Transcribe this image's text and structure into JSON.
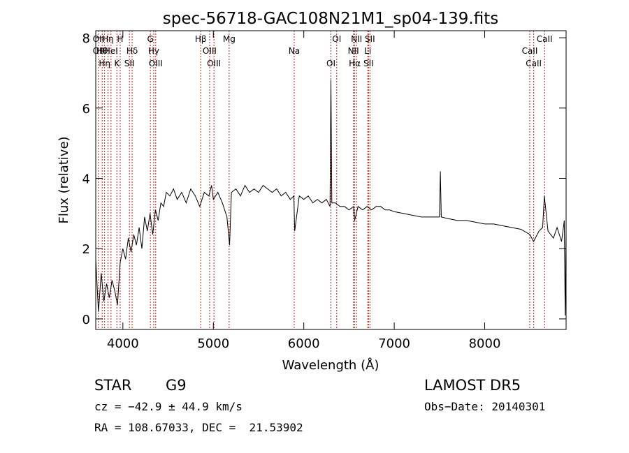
{
  "chart_data": {
    "type": "line",
    "title": "spec-56718-GAC108N21M1_sp04-139.fits",
    "xlabel": "Wavelength (Å)",
    "ylabel": "Flux (relative)",
    "xlim": [
      3700,
      8900
    ],
    "ylim": [
      -0.3,
      8.2
    ],
    "x_ticks": [
      4000,
      5000,
      6000,
      7000,
      8000
    ],
    "y_ticks": [
      0,
      2,
      4,
      6,
      8
    ],
    "grid": false,
    "series": [
      {
        "x": [
          3700,
          3730,
          3760,
          3790,
          3820,
          3850,
          3880,
          3910,
          3940,
          3970,
          4000,
          4030,
          4060,
          4090,
          4120,
          4150,
          4180,
          4210,
          4240,
          4270,
          4300,
          4330,
          4360,
          4390,
          4420,
          4450,
          4480,
          4520,
          4560,
          4600,
          4650,
          4700,
          4750,
          4800,
          4850,
          4900,
          4950,
          4980,
          5000,
          5050,
          5100,
          5150,
          5180,
          5200,
          5250,
          5300,
          5350,
          5400,
          5450,
          5500,
          5550,
          5600,
          5650,
          5700,
          5750,
          5800,
          5850,
          5890,
          5900,
          5950,
          6000,
          6050,
          6100,
          6150,
          6200,
          6250,
          6290,
          6300,
          6310,
          6350,
          6400,
          6450,
          6500,
          6550,
          6563,
          6600,
          6650,
          6700,
          6750,
          6800,
          6850,
          6900,
          6950,
          7000,
          7100,
          7200,
          7300,
          7400,
          7500,
          7510,
          7520,
          7600,
          7700,
          7800,
          7900,
          8000,
          8100,
          8200,
          8300,
          8400,
          8500,
          8540,
          8600,
          8640,
          8660,
          8700,
          8760,
          8800,
          8850,
          8880,
          8890,
          8900
        ],
        "y": [
          1.7,
          0.2,
          1.3,
          0.5,
          1.0,
          0.6,
          1.1,
          0.8,
          0.4,
          1.6,
          2.0,
          1.7,
          2.3,
          1.9,
          2.4,
          2.1,
          2.6,
          2.0,
          2.9,
          2.5,
          3.0,
          2.4,
          3.1,
          2.8,
          3.3,
          3.2,
          3.6,
          3.5,
          3.7,
          3.4,
          3.6,
          3.3,
          3.7,
          3.5,
          3.2,
          3.6,
          3.5,
          3.8,
          3.4,
          3.6,
          3.3,
          2.9,
          2.1,
          3.6,
          3.7,
          3.5,
          3.8,
          3.6,
          3.7,
          3.6,
          3.8,
          3.7,
          3.6,
          3.7,
          3.5,
          3.6,
          3.4,
          3.5,
          2.5,
          3.5,
          3.4,
          3.5,
          3.3,
          3.4,
          3.3,
          3.4,
          3.2,
          6.8,
          3.3,
          3.3,
          3.2,
          3.2,
          3.1,
          3.2,
          2.8,
          3.2,
          3.1,
          3.2,
          3.1,
          3.2,
          3.2,
          3.1,
          3.1,
          3.05,
          3.0,
          2.95,
          2.9,
          2.9,
          2.9,
          4.2,
          2.9,
          2.85,
          2.8,
          2.8,
          2.75,
          2.7,
          2.7,
          2.65,
          2.6,
          2.55,
          2.4,
          2.2,
          2.5,
          2.6,
          3.5,
          2.5,
          2.3,
          2.6,
          2.2,
          2.8,
          0.1,
          2.5
        ]
      }
    ],
    "lines": [
      {
        "x": 3730,
        "labels": [
          "OII",
          "OII"
        ]
      },
      {
        "x": 3771,
        "labels": [
          "Hθ"
        ]
      },
      {
        "x": 3798,
        "labels": [
          "Hη"
        ]
      },
      {
        "x": 3835,
        "labels": [
          "Hη"
        ]
      },
      {
        "x": 3869,
        "labels": [
          "HeI"
        ]
      },
      {
        "x": 3934,
        "labels": [
          "K"
        ]
      },
      {
        "x": 3970,
        "labels": [
          "H"
        ]
      },
      {
        "x": 4102,
        "labels": [
          "Hδ"
        ]
      },
      {
        "x": 4072,
        "labels": [
          "SII"
        ]
      },
      {
        "x": 4304,
        "labels": [
          "G"
        ]
      },
      {
        "x": 4341,
        "labels": [
          "Hγ"
        ]
      },
      {
        "x": 4363,
        "labels": [
          "OIII"
        ]
      },
      {
        "x": 4861,
        "labels": [
          "Hβ"
        ]
      },
      {
        "x": 4959,
        "labels": [
          "OIII"
        ]
      },
      {
        "x": 5007,
        "labels": [
          "OIII"
        ]
      },
      {
        "x": 5175,
        "labels": [
          "Mg"
        ]
      },
      {
        "x": 5894,
        "labels": [
          "Na"
        ]
      },
      {
        "x": 6300,
        "labels": [
          "OI"
        ]
      },
      {
        "x": 6364,
        "labels": [
          "OI"
        ]
      },
      {
        "x": 6548,
        "labels": [
          "NII"
        ]
      },
      {
        "x": 6563,
        "labels": [
          "Hα"
        ]
      },
      {
        "x": 6583,
        "labels": [
          "NII"
        ]
      },
      {
        "x": 6707,
        "labels": [
          "Li"
        ]
      },
      {
        "x": 6716,
        "labels": [
          "SII"
        ]
      },
      {
        "x": 6731,
        "labels": [
          "SII"
        ]
      },
      {
        "x": 8498,
        "labels": [
          "CaII"
        ]
      },
      {
        "x": 8542,
        "labels": [
          "CaII"
        ]
      },
      {
        "x": 8662,
        "labels": [
          "CaII"
        ]
      }
    ]
  },
  "info": {
    "object_type": "STAR",
    "subclass": "G9",
    "survey": "LAMOST DR5",
    "cz": "cz = −42.9 ± 44.9 km/s",
    "obs_date": "Obs−Date: 20140301",
    "coords": "RA = 108.67033, DEC =  21.53902"
  },
  "colors": {
    "spectrum": "#000000",
    "line_markers": "#c02020",
    "axes": "#000000",
    "background": "#ffffff"
  }
}
